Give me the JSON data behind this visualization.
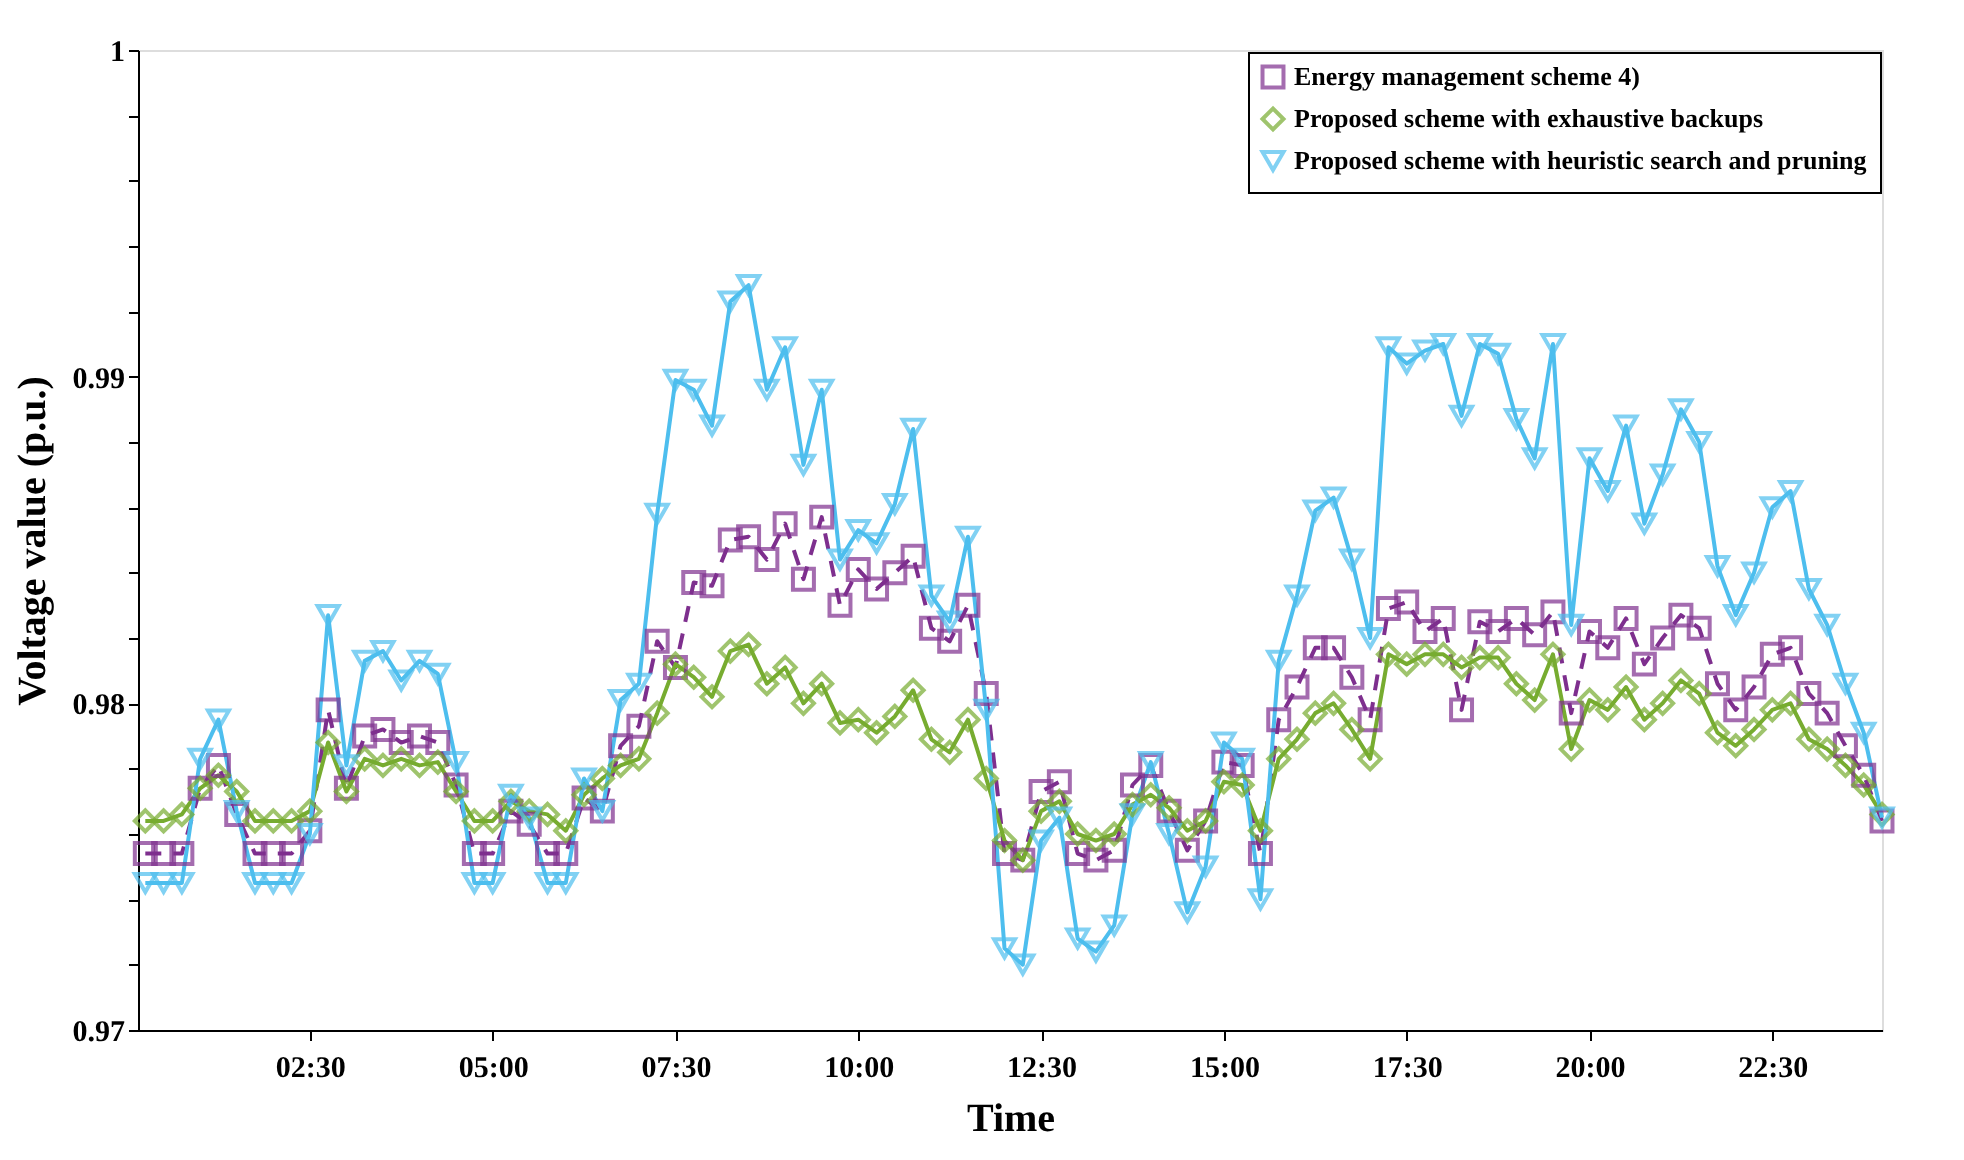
{
  "chart_data": {
    "type": "line",
    "xlabel": "Time",
    "ylabel": "Voltage value (p.u.)",
    "x": [
      0.25,
      0.5,
      0.75,
      1,
      1.25,
      1.5,
      1.75,
      2,
      2.25,
      2.5,
      2.75,
      3,
      3.25,
      3.5,
      3.75,
      4,
      4.25,
      4.5,
      4.75,
      5,
      5.25,
      5.5,
      5.75,
      6,
      6.25,
      6.5,
      6.75,
      7,
      7.25,
      7.5,
      7.75,
      8,
      8.25,
      8.5,
      8.75,
      9,
      9.25,
      9.5,
      9.75,
      10,
      10.25,
      10.5,
      10.75,
      11,
      11.25,
      11.5,
      11.75,
      12,
      12.25,
      12.5,
      12.75,
      13,
      13.25,
      13.5,
      13.75,
      14,
      14.25,
      14.5,
      14.75,
      15,
      15.25,
      15.5,
      15.75,
      16,
      16.25,
      16.5,
      16.75,
      17,
      17.25,
      17.5,
      17.75,
      18,
      18.25,
      18.5,
      18.75,
      19,
      19.25,
      19.5,
      19.75,
      20,
      20.25,
      20.5,
      20.75,
      21,
      21.25,
      21.5,
      21.75,
      22,
      22.25,
      22.5,
      22.75,
      23,
      23.25,
      23.5,
      23.75,
      24
    ],
    "series": [
      {
        "name": "Energy management scheme 4)",
        "color": "#7e2f8e",
        "marker": "square",
        "line_style": "dashed",
        "values": [
          0.9754,
          0.9754,
          0.9754,
          0.9774,
          0.9781,
          0.9766,
          0.9754,
          0.9754,
          0.9754,
          0.9761,
          0.9798,
          0.9774,
          0.979,
          0.9792,
          0.9788,
          0.979,
          0.9788,
          0.9775,
          0.9754,
          0.9754,
          0.9767,
          0.9763,
          0.9754,
          0.9754,
          0.9771,
          0.9767,
          0.9787,
          0.9793,
          0.9819,
          0.9811,
          0.9837,
          0.9836,
          0.985,
          0.9851,
          0.9844,
          0.9855,
          0.9838,
          0.9857,
          0.983,
          0.9841,
          0.9835,
          0.984,
          0.9845,
          0.9823,
          0.9819,
          0.983,
          0.9803,
          0.9754,
          0.9752,
          0.9773,
          0.9776,
          0.9754,
          0.9752,
          0.9755,
          0.9775,
          0.9781,
          0.9767,
          0.9755,
          0.9764,
          0.9782,
          0.9781,
          0.9754,
          0.9795,
          0.9805,
          0.9817,
          0.9817,
          0.9808,
          0.9795,
          0.9829,
          0.9831,
          0.9822,
          0.9826,
          0.9798,
          0.9825,
          0.9822,
          0.9826,
          0.9821,
          0.9828,
          0.9797,
          0.9822,
          0.9817,
          0.9826,
          0.9812,
          0.982,
          0.9827,
          0.9823,
          0.9806,
          0.9798,
          0.9805,
          0.9815,
          0.9817,
          0.9803,
          0.9797,
          0.9787,
          0.9778,
          0.9764
        ]
      },
      {
        "name": "Proposed scheme with exhaustive backups",
        "color": "#77ac30",
        "marker": "diamond",
        "line_style": "solid",
        "values": [
          0.9764,
          0.9764,
          0.9766,
          0.9774,
          0.9778,
          0.9773,
          0.9764,
          0.9764,
          0.9764,
          0.9767,
          0.9788,
          0.9773,
          0.9783,
          0.9781,
          0.9783,
          0.9781,
          0.9782,
          0.9773,
          0.9764,
          0.9764,
          0.977,
          0.9767,
          0.9766,
          0.9761,
          0.9772,
          0.9777,
          0.9781,
          0.9783,
          0.9797,
          0.9812,
          0.9808,
          0.9802,
          0.9816,
          0.9818,
          0.9806,
          0.9811,
          0.98,
          0.9806,
          0.9794,
          0.9795,
          0.9791,
          0.9796,
          0.9804,
          0.9789,
          0.9785,
          0.9795,
          0.9777,
          0.9758,
          0.9752,
          0.9767,
          0.977,
          0.976,
          0.9758,
          0.976,
          0.9769,
          0.9772,
          0.9768,
          0.9761,
          0.9764,
          0.9776,
          0.9775,
          0.9761,
          0.9783,
          0.9789,
          0.9797,
          0.98,
          0.9792,
          0.9783,
          0.9815,
          0.9812,
          0.9815,
          0.9815,
          0.9811,
          0.9814,
          0.9814,
          0.9806,
          0.9801,
          0.9815,
          0.9786,
          0.9801,
          0.9798,
          0.9805,
          0.9795,
          0.98,
          0.9807,
          0.9803,
          0.9791,
          0.9787,
          0.9792,
          0.9798,
          0.98,
          0.9789,
          0.9786,
          0.9781,
          0.9775,
          0.9766
        ]
      },
      {
        "name": "Proposed scheme with heuristic search and pruning",
        "color": "#4dbeee",
        "marker": "triangle",
        "line_style": "solid",
        "values": [
          0.9745,
          0.9745,
          0.9745,
          0.9783,
          0.9795,
          0.9767,
          0.9745,
          0.9745,
          0.9745,
          0.976,
          0.9827,
          0.9781,
          0.9813,
          0.9816,
          0.9807,
          0.9813,
          0.9809,
          0.9782,
          0.9745,
          0.9745,
          0.9772,
          0.9765,
          0.9745,
          0.9745,
          0.9777,
          0.9767,
          0.9801,
          0.9806,
          0.9858,
          0.9899,
          0.9896,
          0.9885,
          0.9923,
          0.9928,
          0.9896,
          0.9909,
          0.9873,
          0.9896,
          0.9844,
          0.9853,
          0.9849,
          0.9861,
          0.9884,
          0.9833,
          0.9825,
          0.9851,
          0.9798,
          0.9725,
          0.972,
          0.9758,
          0.9765,
          0.9728,
          0.9724,
          0.9732,
          0.9766,
          0.9782,
          0.976,
          0.9736,
          0.975,
          0.9788,
          0.9783,
          0.974,
          0.9813,
          0.9833,
          0.9859,
          0.9863,
          0.9844,
          0.982,
          0.9909,
          0.9904,
          0.9908,
          0.991,
          0.9888,
          0.991,
          0.9907,
          0.9887,
          0.9875,
          0.991,
          0.9824,
          0.9875,
          0.9865,
          0.9885,
          0.9855,
          0.987,
          0.989,
          0.988,
          0.9842,
          0.9827,
          0.984,
          0.986,
          0.9865,
          0.9835,
          0.9824,
          0.9806,
          0.9791,
          0.9765
        ]
      }
    ],
    "xlim": [
      0.15,
      24
    ],
    "xticks": [
      {
        "value": 2.5,
        "label": "02:30"
      },
      {
        "value": 5,
        "label": "05:00"
      },
      {
        "value": 7.5,
        "label": "07:30"
      },
      {
        "value": 10,
        "label": "10:00"
      },
      {
        "value": 12.5,
        "label": "12:30"
      },
      {
        "value": 15,
        "label": "15:00"
      },
      {
        "value": 17.5,
        "label": "17:30"
      },
      {
        "value": 20,
        "label": "20:00"
      },
      {
        "value": 22.5,
        "label": "22:30"
      }
    ],
    "ylim": [
      0.97,
      1
    ],
    "yticks": [
      0.97,
      {
        "value": 0.972,
        "label": null
      },
      {
        "value": 0.974,
        "label": null
      },
      {
        "value": 0.976,
        "label": null
      },
      {
        "value": 0.978,
        "label": null
      },
      0.98,
      {
        "value": 0.982,
        "label": null
      },
      {
        "value": 0.984,
        "label": null
      },
      {
        "value": 0.986,
        "label": null
      },
      {
        "value": 0.988,
        "label": null
      },
      0.99,
      {
        "value": 0.992,
        "label": null
      },
      {
        "value": 0.994,
        "label": null
      },
      {
        "value": 0.996,
        "label": null
      },
      {
        "value": 0.998,
        "label": null
      },
      1
    ],
    "grid": false,
    "legend": "top right"
  }
}
